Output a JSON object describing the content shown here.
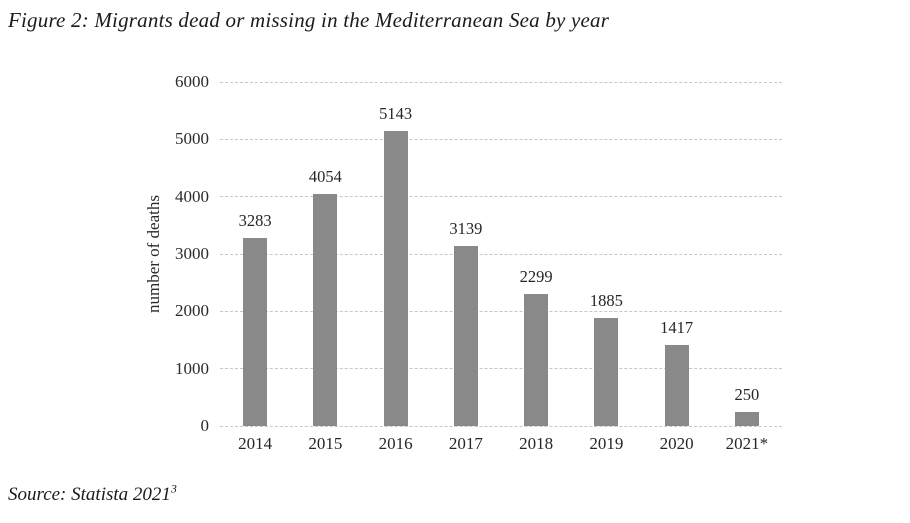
{
  "header": {
    "title": "Figure 2: Migrants dead or missing in the Mediterranean Sea by year"
  },
  "chart_data": {
    "type": "bar",
    "categories": [
      "2014",
      "2015",
      "2016",
      "2017",
      "2018",
      "2019",
      "2020",
      "2021*"
    ],
    "values": [
      3283,
      4054,
      5143,
      3139,
      2299,
      1885,
      1417,
      250
    ],
    "title": "",
    "xlabel": "",
    "ylabel": "number of deaths",
    "ylim": [
      0,
      6000
    ],
    "yticks": [
      0,
      1000,
      2000,
      3000,
      4000,
      5000,
      6000
    ],
    "grid": "horizontal-dashed",
    "legend": "none",
    "bar_color": "#898989",
    "gridline_color": "#c6c6cb",
    "data_labels": "above-bars"
  },
  "footer": {
    "source_text": "Source: Statista 2021",
    "source_superscript": "3"
  }
}
